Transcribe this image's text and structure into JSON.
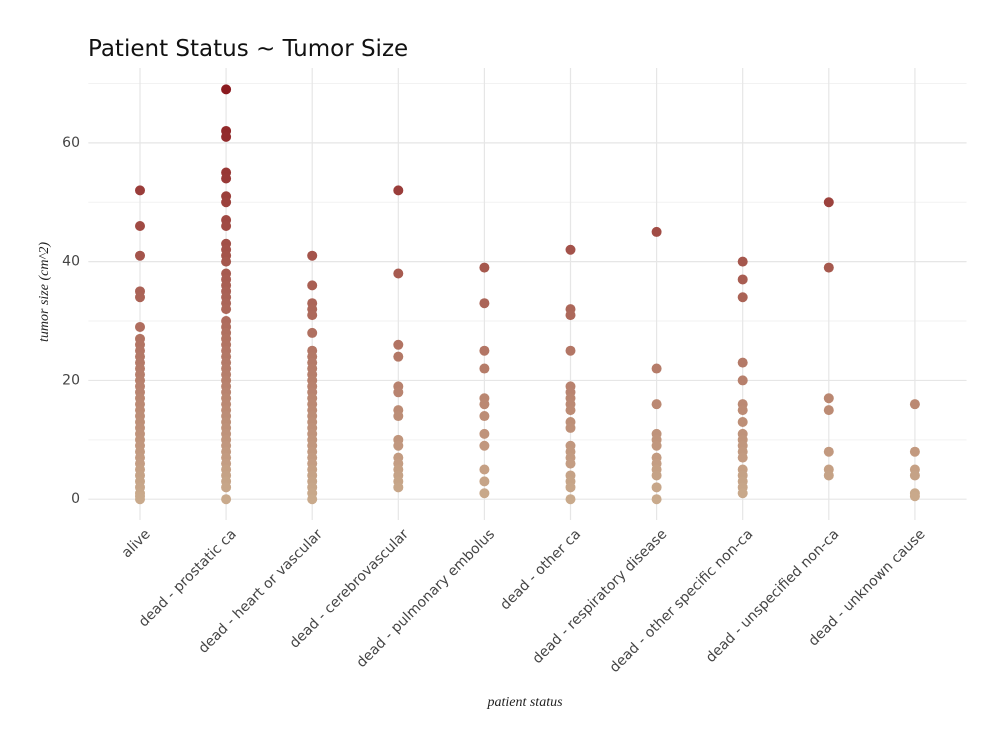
{
  "chart_data": {
    "type": "strip",
    "title": "Patient Status ~ Tumor Size",
    "x_label": "patient status",
    "y_label": "tumor size (cm^2)",
    "categories": [
      "alive",
      "dead - prostatic ca",
      "dead - heart or vascular",
      "dead - cerebrovascular",
      "dead - pulmonary embolus",
      "dead - other ca",
      "dead - respiratory disease",
      "dead - other specific non-ca",
      "dead - unspecified non-ca",
      "dead - unknown cause"
    ],
    "values": [
      [
        52,
        46,
        41,
        35,
        34,
        29,
        27,
        26,
        25,
        24,
        23,
        22,
        21,
        20,
        19,
        18,
        17,
        16,
        15,
        14,
        13,
        12,
        11,
        10,
        9,
        8,
        7,
        6,
        5,
        4,
        3,
        2,
        1,
        0.5,
        0
      ],
      [
        69,
        62,
        61,
        55,
        54,
        51,
        50,
        47,
        46,
        43,
        42,
        41,
        40,
        38,
        37,
        36,
        35,
        34,
        33,
        32,
        30,
        29,
        28,
        27,
        26,
        25,
        24,
        23,
        22,
        21,
        20,
        19,
        18,
        17,
        16,
        15,
        14,
        13,
        12,
        11,
        10,
        9,
        8,
        7,
        6,
        5,
        4,
        3,
        2,
        0
      ],
      [
        41,
        36,
        33,
        32,
        31,
        28,
        25,
        24,
        23,
        22,
        21,
        20,
        19,
        18,
        17,
        16,
        15,
        14,
        13,
        12,
        11,
        10,
        9,
        8,
        7,
        6,
        5,
        4,
        3,
        2,
        1,
        0
      ],
      [
        52,
        38,
        26,
        24,
        19,
        18,
        15,
        14,
        10,
        9,
        7,
        6,
        5,
        4,
        3,
        2
      ],
      [
        39,
        33,
        25,
        22,
        17,
        16,
        14,
        11,
        9,
        5,
        3,
        1
      ],
      [
        42,
        32,
        31,
        25,
        19,
        18,
        17,
        16,
        15,
        13,
        12,
        9,
        8,
        7,
        6,
        4,
        3,
        2,
        0
      ],
      [
        45,
        22,
        16,
        11,
        10,
        9,
        7,
        6,
        5,
        4,
        2,
        0
      ],
      [
        40,
        37,
        34,
        23,
        20,
        16,
        15,
        13,
        11,
        10,
        9,
        8,
        7,
        5,
        4,
        3,
        2,
        1
      ],
      [
        50,
        39,
        17,
        15,
        8,
        5,
        4
      ],
      [
        16,
        8,
        5,
        4,
        1,
        0.5
      ]
    ],
    "color_gradient": [
      "#c9aa8c",
      "#8b1a1f"
    ],
    "ylim": [
      -3.5,
      72.6
    ],
    "yticks": [
      0,
      20,
      40,
      60
    ],
    "minor_yticks": [
      10,
      30,
      50,
      70
    ],
    "grid": true
  }
}
